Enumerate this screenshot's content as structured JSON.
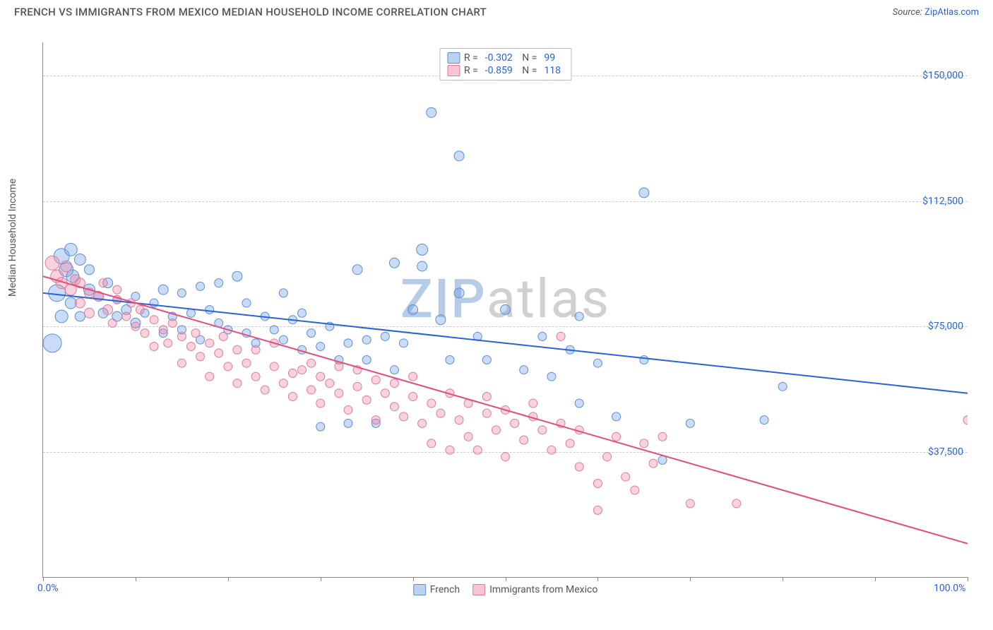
{
  "header": {
    "title": "FRENCH VS IMMIGRANTS FROM MEXICO MEDIAN HOUSEHOLD INCOME CORRELATION CHART",
    "source_prefix": "Source: ",
    "source_link": "ZipAtlas.com"
  },
  "chart": {
    "type": "scatter",
    "y_axis_label": "Median Household Income",
    "x_min": 0,
    "x_max": 100,
    "y_min": 0,
    "y_max": 160000,
    "x_ticks": [
      0,
      10,
      20,
      30,
      40,
      50,
      60,
      70,
      80,
      90,
      100
    ],
    "x_tick_labels": {
      "0": "0.0%",
      "100": "100.0%"
    },
    "y_gridlines": [
      37500,
      75000,
      112500,
      150000
    ],
    "y_tick_labels": {
      "37500": "$37,500",
      "75000": "$75,000",
      "112500": "$112,500",
      "150000": "$150,000"
    },
    "background_color": "#ffffff",
    "grid_color": "#cccccc",
    "axis_color": "#888888",
    "watermark": {
      "z": "ZIP",
      "rest": "atlas"
    }
  },
  "series": [
    {
      "id": "french",
      "label": "French",
      "fill": "rgba(102,153,225,0.35)",
      "stroke": "#5a8fd6",
      "swatch_fill": "rgba(120,165,225,0.5)",
      "swatch_border": "#5a8fd6",
      "line_color": "#2962d9",
      "line_width": 2,
      "R": "-0.302",
      "N": "99",
      "reg_start": {
        "x": 0,
        "y": 85000
      },
      "reg_end": {
        "x": 100,
        "y": 55000
      },
      "points": [
        {
          "x": 1,
          "y": 70000,
          "r": 13
        },
        {
          "x": 1.5,
          "y": 85000,
          "r": 12
        },
        {
          "x": 2,
          "y": 96000,
          "r": 11
        },
        {
          "x": 2,
          "y": 78000,
          "r": 9
        },
        {
          "x": 2.5,
          "y": 92000,
          "r": 10
        },
        {
          "x": 3,
          "y": 98000,
          "r": 9
        },
        {
          "x": 3,
          "y": 82000,
          "r": 8
        },
        {
          "x": 3.2,
          "y": 90000,
          "r": 9
        },
        {
          "x": 4,
          "y": 95000,
          "r": 8
        },
        {
          "x": 4,
          "y": 78000,
          "r": 7
        },
        {
          "x": 5,
          "y": 86000,
          "r": 8
        },
        {
          "x": 5,
          "y": 92000,
          "r": 7
        },
        {
          "x": 6,
          "y": 84000,
          "r": 7
        },
        {
          "x": 6.5,
          "y": 79000,
          "r": 7
        },
        {
          "x": 7,
          "y": 88000,
          "r": 7
        },
        {
          "x": 8,
          "y": 78000,
          "r": 7
        },
        {
          "x": 8,
          "y": 83000,
          "r": 6
        },
        {
          "x": 9,
          "y": 80000,
          "r": 7
        },
        {
          "x": 10,
          "y": 84000,
          "r": 6
        },
        {
          "x": 10,
          "y": 76000,
          "r": 7
        },
        {
          "x": 11,
          "y": 79000,
          "r": 6
        },
        {
          "x": 12,
          "y": 82000,
          "r": 6
        },
        {
          "x": 13,
          "y": 86000,
          "r": 7
        },
        {
          "x": 13,
          "y": 73000,
          "r": 6
        },
        {
          "x": 14,
          "y": 78000,
          "r": 6
        },
        {
          "x": 15,
          "y": 74000,
          "r": 6
        },
        {
          "x": 15,
          "y": 85000,
          "r": 6
        },
        {
          "x": 16,
          "y": 79000,
          "r": 6
        },
        {
          "x": 17,
          "y": 87000,
          "r": 6
        },
        {
          "x": 17,
          "y": 71000,
          "r": 6
        },
        {
          "x": 18,
          "y": 80000,
          "r": 6
        },
        {
          "x": 19,
          "y": 76000,
          "r": 6
        },
        {
          "x": 19,
          "y": 88000,
          "r": 6
        },
        {
          "x": 20,
          "y": 74000,
          "r": 6
        },
        {
          "x": 21,
          "y": 90000,
          "r": 7
        },
        {
          "x": 22,
          "y": 73000,
          "r": 6
        },
        {
          "x": 22,
          "y": 82000,
          "r": 6
        },
        {
          "x": 23,
          "y": 70000,
          "r": 6
        },
        {
          "x": 24,
          "y": 78000,
          "r": 6
        },
        {
          "x": 25,
          "y": 74000,
          "r": 6
        },
        {
          "x": 26,
          "y": 71000,
          "r": 6
        },
        {
          "x": 26,
          "y": 85000,
          "r": 6
        },
        {
          "x": 27,
          "y": 77000,
          "r": 6
        },
        {
          "x": 28,
          "y": 68000,
          "r": 6
        },
        {
          "x": 28,
          "y": 79000,
          "r": 6
        },
        {
          "x": 29,
          "y": 73000,
          "r": 6
        },
        {
          "x": 30,
          "y": 69000,
          "r": 6
        },
        {
          "x": 30,
          "y": 45000,
          "r": 6
        },
        {
          "x": 31,
          "y": 75000,
          "r": 6
        },
        {
          "x": 32,
          "y": 65000,
          "r": 6
        },
        {
          "x": 33,
          "y": 70000,
          "r": 6
        },
        {
          "x": 33,
          "y": 46000,
          "r": 6
        },
        {
          "x": 34,
          "y": 92000,
          "r": 7
        },
        {
          "x": 35,
          "y": 71000,
          "r": 6
        },
        {
          "x": 35,
          "y": 65000,
          "r": 6
        },
        {
          "x": 36,
          "y": 46000,
          "r": 6
        },
        {
          "x": 37,
          "y": 72000,
          "r": 6
        },
        {
          "x": 38,
          "y": 62000,
          "r": 6
        },
        {
          "x": 38,
          "y": 94000,
          "r": 7
        },
        {
          "x": 39,
          "y": 70000,
          "r": 6
        },
        {
          "x": 40,
          "y": 80000,
          "r": 7
        },
        {
          "x": 41,
          "y": 98000,
          "r": 8
        },
        {
          "x": 41,
          "y": 93000,
          "r": 7
        },
        {
          "x": 42,
          "y": 139000,
          "r": 7
        },
        {
          "x": 43,
          "y": 77000,
          "r": 7
        },
        {
          "x": 44,
          "y": 65000,
          "r": 6
        },
        {
          "x": 45,
          "y": 126000,
          "r": 7
        },
        {
          "x": 45,
          "y": 85000,
          "r": 7
        },
        {
          "x": 47,
          "y": 72000,
          "r": 6
        },
        {
          "x": 48,
          "y": 65000,
          "r": 6
        },
        {
          "x": 50,
          "y": 80000,
          "r": 7
        },
        {
          "x": 52,
          "y": 62000,
          "r": 6
        },
        {
          "x": 54,
          "y": 72000,
          "r": 6
        },
        {
          "x": 55,
          "y": 60000,
          "r": 6
        },
        {
          "x": 57,
          "y": 68000,
          "r": 6
        },
        {
          "x": 58,
          "y": 52000,
          "r": 6
        },
        {
          "x": 58,
          "y": 78000,
          "r": 6
        },
        {
          "x": 60,
          "y": 64000,
          "r": 6
        },
        {
          "x": 62,
          "y": 48000,
          "r": 6
        },
        {
          "x": 65,
          "y": 65000,
          "r": 6
        },
        {
          "x": 65,
          "y": 115000,
          "r": 7
        },
        {
          "x": 67,
          "y": 35000,
          "r": 6
        },
        {
          "x": 70,
          "y": 46000,
          "r": 6
        },
        {
          "x": 78,
          "y": 47000,
          "r": 6
        },
        {
          "x": 80,
          "y": 57000,
          "r": 6
        }
      ]
    },
    {
      "id": "mexico",
      "label": "Immigrants from Mexico",
      "fill": "rgba(235,130,160,0.35)",
      "stroke": "#e07a9a",
      "swatch_fill": "rgba(240,150,175,0.55)",
      "swatch_border": "#e07a9a",
      "line_color": "#e84a7a",
      "line_width": 2,
      "R": "-0.859",
      "N": "118",
      "reg_start": {
        "x": 0,
        "y": 90000
      },
      "reg_end": {
        "x": 100,
        "y": 10000
      },
      "points": [
        {
          "x": 1,
          "y": 94000,
          "r": 10
        },
        {
          "x": 1.5,
          "y": 90000,
          "r": 9
        },
        {
          "x": 2,
          "y": 88000,
          "r": 8
        },
        {
          "x": 2.5,
          "y": 93000,
          "r": 8
        },
        {
          "x": 3,
          "y": 86000,
          "r": 8
        },
        {
          "x": 3.5,
          "y": 89000,
          "r": 7
        },
        {
          "x": 4,
          "y": 82000,
          "r": 7
        },
        {
          "x": 4,
          "y": 88000,
          "r": 7
        },
        {
          "x": 5,
          "y": 85000,
          "r": 7
        },
        {
          "x": 5,
          "y": 79000,
          "r": 7
        },
        {
          "x": 6,
          "y": 84000,
          "r": 7
        },
        {
          "x": 6.5,
          "y": 88000,
          "r": 6
        },
        {
          "x": 7,
          "y": 80000,
          "r": 7
        },
        {
          "x": 7.5,
          "y": 76000,
          "r": 6
        },
        {
          "x": 8,
          "y": 83000,
          "r": 6
        },
        {
          "x": 8,
          "y": 86000,
          "r": 6
        },
        {
          "x": 9,
          "y": 78000,
          "r": 6
        },
        {
          "x": 9.5,
          "y": 82000,
          "r": 6
        },
        {
          "x": 10,
          "y": 75000,
          "r": 6
        },
        {
          "x": 10.5,
          "y": 80000,
          "r": 6
        },
        {
          "x": 11,
          "y": 73000,
          "r": 6
        },
        {
          "x": 12,
          "y": 77000,
          "r": 6
        },
        {
          "x": 12,
          "y": 69000,
          "r": 6
        },
        {
          "x": 13,
          "y": 74000,
          "r": 6
        },
        {
          "x": 13.5,
          "y": 70000,
          "r": 6
        },
        {
          "x": 14,
          "y": 76000,
          "r": 6
        },
        {
          "x": 15,
          "y": 72000,
          "r": 6
        },
        {
          "x": 15,
          "y": 64000,
          "r": 6
        },
        {
          "x": 16,
          "y": 69000,
          "r": 6
        },
        {
          "x": 16.5,
          "y": 73000,
          "r": 6
        },
        {
          "x": 17,
          "y": 66000,
          "r": 6
        },
        {
          "x": 18,
          "y": 70000,
          "r": 6
        },
        {
          "x": 18,
          "y": 60000,
          "r": 6
        },
        {
          "x": 19,
          "y": 67000,
          "r": 6
        },
        {
          "x": 19.5,
          "y": 72000,
          "r": 6
        },
        {
          "x": 20,
          "y": 63000,
          "r": 6
        },
        {
          "x": 21,
          "y": 68000,
          "r": 6
        },
        {
          "x": 21,
          "y": 58000,
          "r": 6
        },
        {
          "x": 22,
          "y": 64000,
          "r": 6
        },
        {
          "x": 23,
          "y": 60000,
          "r": 6
        },
        {
          "x": 23,
          "y": 68000,
          "r": 6
        },
        {
          "x": 24,
          "y": 56000,
          "r": 6
        },
        {
          "x": 25,
          "y": 63000,
          "r": 6
        },
        {
          "x": 25,
          "y": 70000,
          "r": 6
        },
        {
          "x": 26,
          "y": 58000,
          "r": 6
        },
        {
          "x": 27,
          "y": 61000,
          "r": 6
        },
        {
          "x": 27,
          "y": 54000,
          "r": 6
        },
        {
          "x": 28,
          "y": 62000,
          "r": 6
        },
        {
          "x": 29,
          "y": 56000,
          "r": 6
        },
        {
          "x": 29,
          "y": 64000,
          "r": 6
        },
        {
          "x": 30,
          "y": 52000,
          "r": 6
        },
        {
          "x": 30,
          "y": 60000,
          "r": 6
        },
        {
          "x": 31,
          "y": 58000,
          "r": 6
        },
        {
          "x": 32,
          "y": 55000,
          "r": 6
        },
        {
          "x": 32,
          "y": 63000,
          "r": 6
        },
        {
          "x": 33,
          "y": 50000,
          "r": 6
        },
        {
          "x": 34,
          "y": 57000,
          "r": 6
        },
        {
          "x": 34,
          "y": 62000,
          "r": 6
        },
        {
          "x": 35,
          "y": 53000,
          "r": 6
        },
        {
          "x": 36,
          "y": 59000,
          "r": 6
        },
        {
          "x": 36,
          "y": 47000,
          "r": 6
        },
        {
          "x": 37,
          "y": 55000,
          "r": 6
        },
        {
          "x": 38,
          "y": 51000,
          "r": 6
        },
        {
          "x": 38,
          "y": 58000,
          "r": 6
        },
        {
          "x": 39,
          "y": 48000,
          "r": 6
        },
        {
          "x": 40,
          "y": 54000,
          "r": 6
        },
        {
          "x": 40,
          "y": 60000,
          "r": 6
        },
        {
          "x": 41,
          "y": 46000,
          "r": 6
        },
        {
          "x": 42,
          "y": 52000,
          "r": 6
        },
        {
          "x": 42,
          "y": 40000,
          "r": 6
        },
        {
          "x": 43,
          "y": 49000,
          "r": 6
        },
        {
          "x": 44,
          "y": 55000,
          "r": 6
        },
        {
          "x": 44,
          "y": 38000,
          "r": 6
        },
        {
          "x": 45,
          "y": 47000,
          "r": 6
        },
        {
          "x": 46,
          "y": 52000,
          "r": 6
        },
        {
          "x": 46,
          "y": 42000,
          "r": 6
        },
        {
          "x": 47,
          "y": 38000,
          "r": 6
        },
        {
          "x": 48,
          "y": 49000,
          "r": 6
        },
        {
          "x": 48,
          "y": 54000,
          "r": 6
        },
        {
          "x": 49,
          "y": 44000,
          "r": 6
        },
        {
          "x": 50,
          "y": 50000,
          "r": 6
        },
        {
          "x": 50,
          "y": 36000,
          "r": 6
        },
        {
          "x": 51,
          "y": 46000,
          "r": 6
        },
        {
          "x": 52,
          "y": 41000,
          "r": 6
        },
        {
          "x": 53,
          "y": 48000,
          "r": 6
        },
        {
          "x": 53,
          "y": 52000,
          "r": 6
        },
        {
          "x": 54,
          "y": 44000,
          "r": 6
        },
        {
          "x": 55,
          "y": 38000,
          "r": 6
        },
        {
          "x": 56,
          "y": 46000,
          "r": 6
        },
        {
          "x": 56,
          "y": 72000,
          "r": 6
        },
        {
          "x": 57,
          "y": 40000,
          "r": 6
        },
        {
          "x": 58,
          "y": 33000,
          "r": 6
        },
        {
          "x": 58,
          "y": 44000,
          "r": 6
        },
        {
          "x": 60,
          "y": 28000,
          "r": 6
        },
        {
          "x": 60,
          "y": 20000,
          "r": 6
        },
        {
          "x": 61,
          "y": 36000,
          "r": 6
        },
        {
          "x": 62,
          "y": 42000,
          "r": 6
        },
        {
          "x": 63,
          "y": 30000,
          "r": 6
        },
        {
          "x": 64,
          "y": 26000,
          "r": 6
        },
        {
          "x": 65,
          "y": 40000,
          "r": 6
        },
        {
          "x": 66,
          "y": 34000,
          "r": 6
        },
        {
          "x": 67,
          "y": 42000,
          "r": 6
        },
        {
          "x": 70,
          "y": 22000,
          "r": 6
        },
        {
          "x": 75,
          "y": 22000,
          "r": 6
        },
        {
          "x": 100,
          "y": 47000,
          "r": 6
        }
      ]
    }
  ]
}
